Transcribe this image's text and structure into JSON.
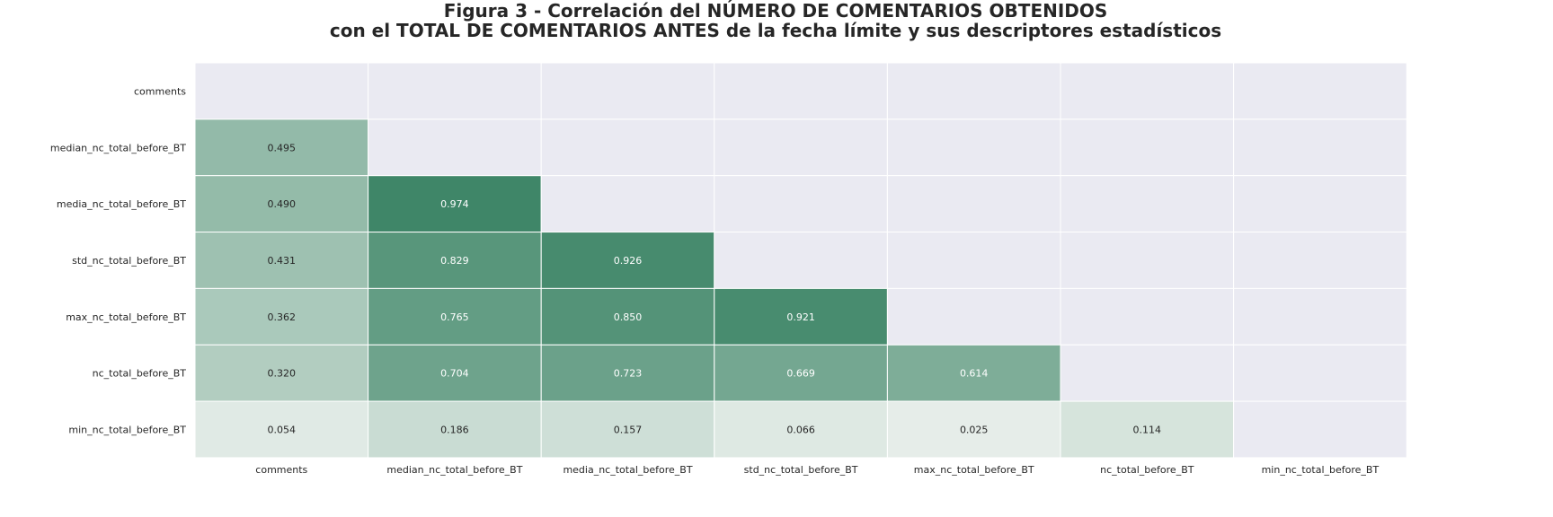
{
  "chart_data": {
    "type": "heatmap",
    "title_lines": [
      "Figura 3 - Correlación del NÚMERO DE COMENTARIOS OBTENIDOS",
      "con el TOTAL DE COMENTARIOS ANTES de la fecha límite y sus descriptores estadísticos"
    ],
    "x_categories": [
      "comments",
      "median_nc_total_before_BT",
      "media_nc_total_before_BT",
      "std_nc_total_before_BT",
      "max_nc_total_before_BT",
      "nc_total_before_BT",
      "min_nc_total_before_BT"
    ],
    "y_categories": [
      "comments",
      "median_nc_total_before_BT",
      "media_nc_total_before_BT",
      "std_nc_total_before_BT",
      "max_nc_total_before_BT",
      "nc_total_before_BT",
      "min_nc_total_before_BT"
    ],
    "mask": "upper-triangle-including-diagonal",
    "values": [
      [
        null,
        null,
        null,
        null,
        null,
        null,
        null
      ],
      [
        "0.495",
        null,
        null,
        null,
        null,
        null,
        null
      ],
      [
        "0.490",
        "0.974",
        null,
        null,
        null,
        null,
        null
      ],
      [
        "0.431",
        "0.829",
        "0.926",
        null,
        null,
        null,
        null
      ],
      [
        "0.362",
        "0.765",
        "0.850",
        "0.921",
        null,
        null,
        null
      ],
      [
        "0.320",
        "0.704",
        "0.723",
        "0.669",
        "0.614",
        null,
        null
      ],
      [
        "0.054",
        "0.186",
        "0.157",
        "0.066",
        "0.025",
        "0.114",
        null
      ]
    ],
    "colors": {
      "low": "#eaf0ec",
      "high": "#3a8364",
      "masked_background": "#eaeaf2",
      "grid_line": "#ffffff",
      "text_dark": "#262626",
      "text_light": "#ffffff"
    },
    "grid": true,
    "legend": "none"
  }
}
